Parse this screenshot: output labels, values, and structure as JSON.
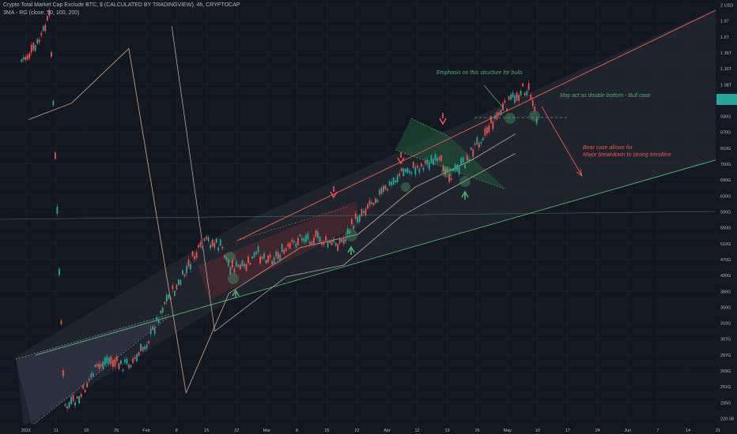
{
  "header": {
    "symbol_line": "Crypto Total Market Cap Exclude BTC, $ (CALCULATED BY TRADINGVIEW), 4h, CRYPTOCAP",
    "indicator_line": "3MA - RG (close, 50, 100, 200)"
  },
  "annotations": {
    "bulls_emphasis": "Emphasis on this structure for bulls",
    "double_bottom": "May act as double bottom - Bull case",
    "bear_case_line1": "Bear case allows for",
    "bear_case_line2": "Major breakdown to strong trendline"
  },
  "colors": {
    "background": "#131722",
    "grid": "#1e2230",
    "candle_up": "#26a69a",
    "candle_down": "#ef5350",
    "ma_fast": "#e8b89a",
    "ma_slow": "#c9b7a4",
    "resistance_line": "#e0574f",
    "support_line": "#4caf72",
    "bull_note": "#4caf72",
    "bear_note": "#ef5350",
    "price_tag": "#26a69a"
  },
  "chart_data": {
    "type": "candlestick",
    "title": "Crypto Total Market Cap Exclude BTC, $ (CALCULATED BY TRADINGVIEW), 4h, CRYPTOCAP",
    "y_scale": "log",
    "y_axis_labels": [
      "2 USD",
      "1.97",
      "1.6T",
      "1.36T",
      "1.16T",
      "1.08T",
      "1.005T",
      "930G",
      "870G",
      "810G",
      "750G",
      "690G",
      "630G",
      "590G",
      "550G",
      "510G",
      "470G",
      "430G",
      "380G",
      "350G",
      "310G",
      "307G",
      "287G",
      "269G",
      "251G",
      "235G",
      "220.5B"
    ],
    "current_price_label": "",
    "x_axis_labels": [
      "2021",
      "11",
      "18",
      "25",
      "Feb",
      "8",
      "15",
      "22",
      "Mar",
      "8",
      "15",
      "22",
      "Apr",
      "12",
      "19",
      "26",
      "May",
      "10",
      "17",
      "24",
      "Jun",
      "7",
      "14",
      "21"
    ],
    "series": [
      {
        "name": "price",
        "points": [
          [
            0.03,
            1.5
          ],
          [
            0.05,
            1.6
          ],
          [
            0.07,
            1.9
          ],
          [
            0.09,
            2.4
          ],
          [
            0.11,
            2.5
          ],
          [
            0.13,
            2.9
          ],
          [
            0.15,
            3.1
          ],
          [
            0.17,
            3.0
          ],
          [
            0.19,
            3.1
          ],
          [
            0.21,
            3.5
          ],
          [
            0.23,
            4.2
          ],
          [
            0.25,
            4.6
          ],
          [
            0.27,
            5.3
          ],
          [
            0.29,
            5.8
          ],
          [
            0.31,
            5.6
          ],
          [
            0.32,
            5.1
          ],
          [
            0.34,
            5.0
          ],
          [
            0.36,
            5.4
          ],
          [
            0.38,
            5.3
          ],
          [
            0.4,
            5.5
          ],
          [
            0.42,
            5.9
          ],
          [
            0.44,
            5.9
          ],
          [
            0.46,
            5.7
          ],
          [
            0.48,
            5.8
          ],
          [
            0.5,
            6.6
          ],
          [
            0.52,
            7.2
          ],
          [
            0.54,
            7.6
          ],
          [
            0.56,
            8.3
          ],
          [
            0.58,
            8.5
          ],
          [
            0.6,
            8.8
          ],
          [
            0.62,
            8.7
          ],
          [
            0.63,
            8.2
          ],
          [
            0.65,
            8.8
          ],
          [
            0.67,
            9.9
          ],
          [
            0.69,
            1.1
          ],
          [
            0.71,
            1.2
          ],
          [
            0.73,
            1.29
          ],
          [
            0.74,
            1.28
          ],
          [
            0.75,
            1.12
          ]
        ]
      },
      {
        "name": "MA 50",
        "points": [
          [
            0.04,
            1.1
          ],
          [
            0.1,
            1.2
          ],
          [
            0.18,
            1.6
          ],
          [
            0.26,
            2.6
          ],
          [
            0.32,
            4.4
          ],
          [
            0.42,
            5.6
          ],
          [
            0.5,
            6.0
          ],
          [
            0.58,
            7.7
          ],
          [
            0.66,
            8.9
          ],
          [
            0.72,
            1.02
          ]
        ]
      },
      {
        "name": "MA 100",
        "points": [
          [
            0.24,
            1.8
          ],
          [
            0.3,
            3.6
          ],
          [
            0.4,
            4.8
          ],
          [
            0.48,
            5.1
          ],
          [
            0.56,
            6.6
          ],
          [
            0.64,
            7.8
          ],
          [
            0.72,
            9.2
          ]
        ]
      }
    ],
    "trendlines": [
      {
        "name": "resistance",
        "from": [
          0.3,
          5.9
        ],
        "to": [
          1.0,
          2.05
        ]
      },
      {
        "name": "support",
        "from": [
          0.05,
          3.3
        ],
        "to": [
          1.0,
          9.2
        ]
      },
      {
        "name": "horizontal",
        "from": [
          0.0,
          6.9
        ],
        "to": [
          1.0,
          6.9
        ]
      }
    ],
    "grid": true,
    "legend": "none"
  }
}
